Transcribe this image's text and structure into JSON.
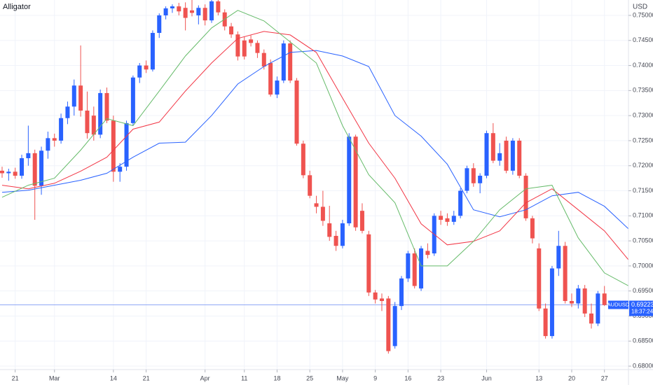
{
  "chart_data": {
    "type": "candlestick",
    "title": "Alligator",
    "currency": "USD",
    "symbol": "AUDUSD",
    "last_price": 0.69223,
    "countdown": "18:37:24",
    "up_color": "#2962ff",
    "down_color": "#ef5350",
    "grid": true,
    "xlim": [
      -0.32,
      95.67
    ],
    "ylim": [
      0.67931,
      0.75307
    ],
    "yticks": [
      {
        "value": 0.68,
        "label": "0.68000"
      },
      {
        "value": 0.685,
        "label": "0.68500"
      },
      {
        "value": 0.69,
        "label": "0.69000"
      },
      {
        "value": 0.695,
        "label": "0.69500"
      },
      {
        "value": 0.7,
        "label": "0.70000"
      },
      {
        "value": 0.705,
        "label": "0.70500"
      },
      {
        "value": 0.71,
        "label": "0.71000"
      },
      {
        "value": 0.715,
        "label": "0.71500"
      },
      {
        "value": 0.72,
        "label": "0.72000"
      },
      {
        "value": 0.725,
        "label": "0.72500"
      },
      {
        "value": 0.73,
        "label": "0.73000"
      },
      {
        "value": 0.735,
        "label": "0.73500"
      },
      {
        "value": 0.74,
        "label": "0.74000"
      },
      {
        "value": 0.745,
        "label": "0.74500"
      },
      {
        "value": 0.75,
        "label": "0.75000"
      }
    ],
    "xticks": [
      {
        "value": 2,
        "label": "21"
      },
      {
        "value": 8,
        "label": "Mar"
      },
      {
        "value": 17,
        "label": "14"
      },
      {
        "value": 22,
        "label": "21"
      },
      {
        "value": 31,
        "label": "Apr"
      },
      {
        "value": 37,
        "label": "11"
      },
      {
        "value": 42,
        "label": "18"
      },
      {
        "value": 47,
        "label": "25"
      },
      {
        "value": 52,
        "label": "May"
      },
      {
        "value": 57,
        "label": "9"
      },
      {
        "value": 62,
        "label": "16"
      },
      {
        "value": 67,
        "label": "23"
      },
      {
        "value": 74,
        "label": "Jun"
      },
      {
        "value": 82,
        "label": "13"
      },
      {
        "value": 87,
        "label": "20"
      },
      {
        "value": 92,
        "label": "27"
      }
    ],
    "open": [
      0.719,
      0.7185,
      0.7188,
      0.718,
      0.7215,
      0.7225,
      0.716,
      0.723,
      0.7255,
      0.725,
      0.7295,
      0.7318,
      0.736,
      0.731,
      0.73,
      0.7262,
      0.7345,
      0.729,
      0.7188,
      0.7198,
      0.7285,
      0.7376,
      0.74,
      0.7392,
      0.7465,
      0.75,
      0.7514,
      0.7518,
      0.7515,
      0.751,
      0.75,
      0.7515,
      0.749,
      0.7528,
      0.7506,
      0.7478,
      0.7462,
      0.745,
      0.7452,
      0.7445,
      0.7425,
      0.7405,
      0.7342,
      0.737,
      0.7444,
      0.737,
      0.7244,
      0.7181,
      0.7125,
      0.7118,
      0.7085,
      0.706,
      0.704,
      0.7085,
      0.7258,
      0.711,
      0.7063,
      0.6947,
      0.6935,
      0.6935,
      0.684,
      0.692,
      0.6975,
      0.7025,
      0.6955,
      0.703,
      0.7025,
      0.71,
      0.7095,
      0.7088,
      0.71,
      0.715,
      0.7195,
      0.7165,
      0.718,
      0.7265,
      0.721,
      0.725,
      0.719,
      0.725,
      0.718,
      0.7095,
      0.7035,
      0.6915,
      0.686,
      0.6995,
      0.704,
      0.693,
      0.6925,
      0.6955,
      0.6905,
      0.6885,
      0.6945
    ],
    "high": [
      0.7198,
      0.7194,
      0.7196,
      0.7222,
      0.728,
      0.7232,
      0.7238,
      0.7268,
      0.7264,
      0.7304,
      0.7328,
      0.7372,
      0.744,
      0.7348,
      0.7318,
      0.7352,
      0.7356,
      0.73,
      0.7205,
      0.729,
      0.738,
      0.7405,
      0.741,
      0.747,
      0.7504,
      0.7518,
      0.7522,
      0.7525,
      0.7526,
      0.7531,
      0.752,
      0.7522,
      0.7531,
      0.7531,
      0.7512,
      0.7485,
      0.7468,
      0.7458,
      0.746,
      0.745,
      0.7432,
      0.7412,
      0.7378,
      0.745,
      0.745,
      0.7375,
      0.725,
      0.719,
      0.714,
      0.715,
      0.712,
      0.707,
      0.7092,
      0.7265,
      0.7262,
      0.7125,
      0.707,
      0.6952,
      0.6945,
      0.694,
      0.6928,
      0.698,
      0.703,
      0.7035,
      0.704,
      0.7045,
      0.7105,
      0.711,
      0.7105,
      0.711,
      0.7155,
      0.72,
      0.7205,
      0.7185,
      0.727,
      0.7285,
      0.7245,
      0.7258,
      0.7255,
      0.7255,
      0.7185,
      0.71,
      0.7045,
      0.6925,
      0.7,
      0.707,
      0.7048,
      0.6945,
      0.6962,
      0.6962,
      0.6925,
      0.695,
      0.696
    ],
    "low": [
      0.7176,
      0.717,
      0.7174,
      0.7174,
      0.72,
      0.7092,
      0.7142,
      0.7214,
      0.7238,
      0.7244,
      0.7283,
      0.73,
      0.7298,
      0.7254,
      0.725,
      0.7255,
      0.7285,
      0.7168,
      0.7168,
      0.719,
      0.728,
      0.7365,
      0.7385,
      0.7388,
      0.7455,
      0.7492,
      0.7505,
      0.75,
      0.747,
      0.7498,
      0.7482,
      0.748,
      0.7485,
      0.75,
      0.747,
      0.7455,
      0.741,
      0.7412,
      0.7438,
      0.7415,
      0.7392,
      0.7338,
      0.7335,
      0.7365,
      0.7365,
      0.724,
      0.7175,
      0.7135,
      0.7105,
      0.708,
      0.705,
      0.703,
      0.7035,
      0.708,
      0.707,
      0.7065,
      0.694,
      0.6925,
      0.691,
      0.6825,
      0.6835,
      0.6912,
      0.6968,
      0.6955,
      0.695,
      0.7015,
      0.702,
      0.7082,
      0.708,
      0.7082,
      0.7095,
      0.7145,
      0.7158,
      0.7145,
      0.7175,
      0.7205,
      0.72,
      0.7185,
      0.7182,
      0.7175,
      0.709,
      0.7045,
      0.691,
      0.6855,
      0.6855,
      0.698,
      0.6925,
      0.6918,
      0.6915,
      0.6898,
      0.6875,
      0.688,
      0.692
    ],
    "close": [
      0.7185,
      0.7188,
      0.718,
      0.7215,
      0.7225,
      0.716,
      0.723,
      0.7255,
      0.725,
      0.7295,
      0.7318,
      0.736,
      0.731,
      0.7265,
      0.7262,
      0.7345,
      0.729,
      0.7188,
      0.7198,
      0.7285,
      0.7376,
      0.74,
      0.7392,
      0.7465,
      0.75,
      0.7514,
      0.7518,
      0.7508,
      0.7495,
      0.7505,
      0.7515,
      0.749,
      0.7528,
      0.7506,
      0.7478,
      0.7462,
      0.7418,
      0.7418,
      0.7445,
      0.7425,
      0.7398,
      0.7342,
      0.737,
      0.7444,
      0.737,
      0.7244,
      0.7181,
      0.714,
      0.7118,
      0.709,
      0.7058,
      0.704,
      0.7085,
      0.7258,
      0.7077,
      0.707,
      0.6947,
      0.6933,
      0.693,
      0.683,
      0.692,
      0.6975,
      0.7025,
      0.696,
      0.7035,
      0.7022,
      0.71,
      0.7092,
      0.7088,
      0.71,
      0.715,
      0.7195,
      0.7165,
      0.718,
      0.7265,
      0.721,
      0.7225,
      0.719,
      0.725,
      0.718,
      0.7095,
      0.7055,
      0.6915,
      0.686,
      0.6995,
      0.704,
      0.693,
      0.6925,
      0.6955,
      0.6905,
      0.6885,
      0.6945,
      0.6922
    ],
    "lines": [
      {
        "color": "#2962ff",
        "x": [
          0,
          4,
          8,
          12,
          16,
          20,
          24,
          28,
          32,
          36,
          40,
          44,
          48,
          52,
          56,
          60,
          64,
          68,
          72,
          76,
          80,
          84,
          88,
          92,
          96
        ],
        "values": [
          0.7147,
          0.7151,
          0.7161,
          0.7171,
          0.7185,
          0.7217,
          0.7245,
          0.7247,
          0.73,
          0.7363,
          0.7398,
          0.7426,
          0.743,
          0.7419,
          0.7398,
          0.73,
          0.7259,
          0.7203,
          0.7112,
          0.7098,
          0.7112,
          0.714,
          0.7147,
          0.7119,
          0.707
        ]
      },
      {
        "color": "#f23645",
        "x": [
          0,
          4,
          8,
          12,
          16,
          20,
          24,
          28,
          32,
          36,
          40,
          44,
          48,
          52,
          56,
          60,
          64,
          68,
          72,
          76,
          80,
          84,
          88,
          92,
          96
        ],
        "values": [
          0.7161,
          0.7154,
          0.7165,
          0.7189,
          0.7217,
          0.7273,
          0.7287,
          0.7349,
          0.7405,
          0.7454,
          0.7468,
          0.7461,
          0.7426,
          0.7335,
          0.7245,
          0.7175,
          0.7084,
          0.7042,
          0.7049,
          0.707,
          0.7126,
          0.7154,
          0.7112,
          0.707,
          0.7007
        ]
      },
      {
        "color": "#66bb6a",
        "x": [
          0,
          4,
          8,
          12,
          16,
          20,
          24,
          28,
          32,
          36,
          40,
          44,
          48,
          52,
          56,
          60,
          64,
          68,
          72,
          76,
          80,
          84,
          88,
          92,
          96
        ],
        "values": [
          0.7137,
          0.7161,
          0.7175,
          0.7231,
          0.7294,
          0.728,
          0.7349,
          0.7419,
          0.7475,
          0.751,
          0.7489,
          0.7447,
          0.7405,
          0.728,
          0.7182,
          0.7126,
          0.7,
          0.7,
          0.7049,
          0.7112,
          0.7154,
          0.7161,
          0.7056,
          0.6986,
          0.6958
        ]
      }
    ]
  }
}
